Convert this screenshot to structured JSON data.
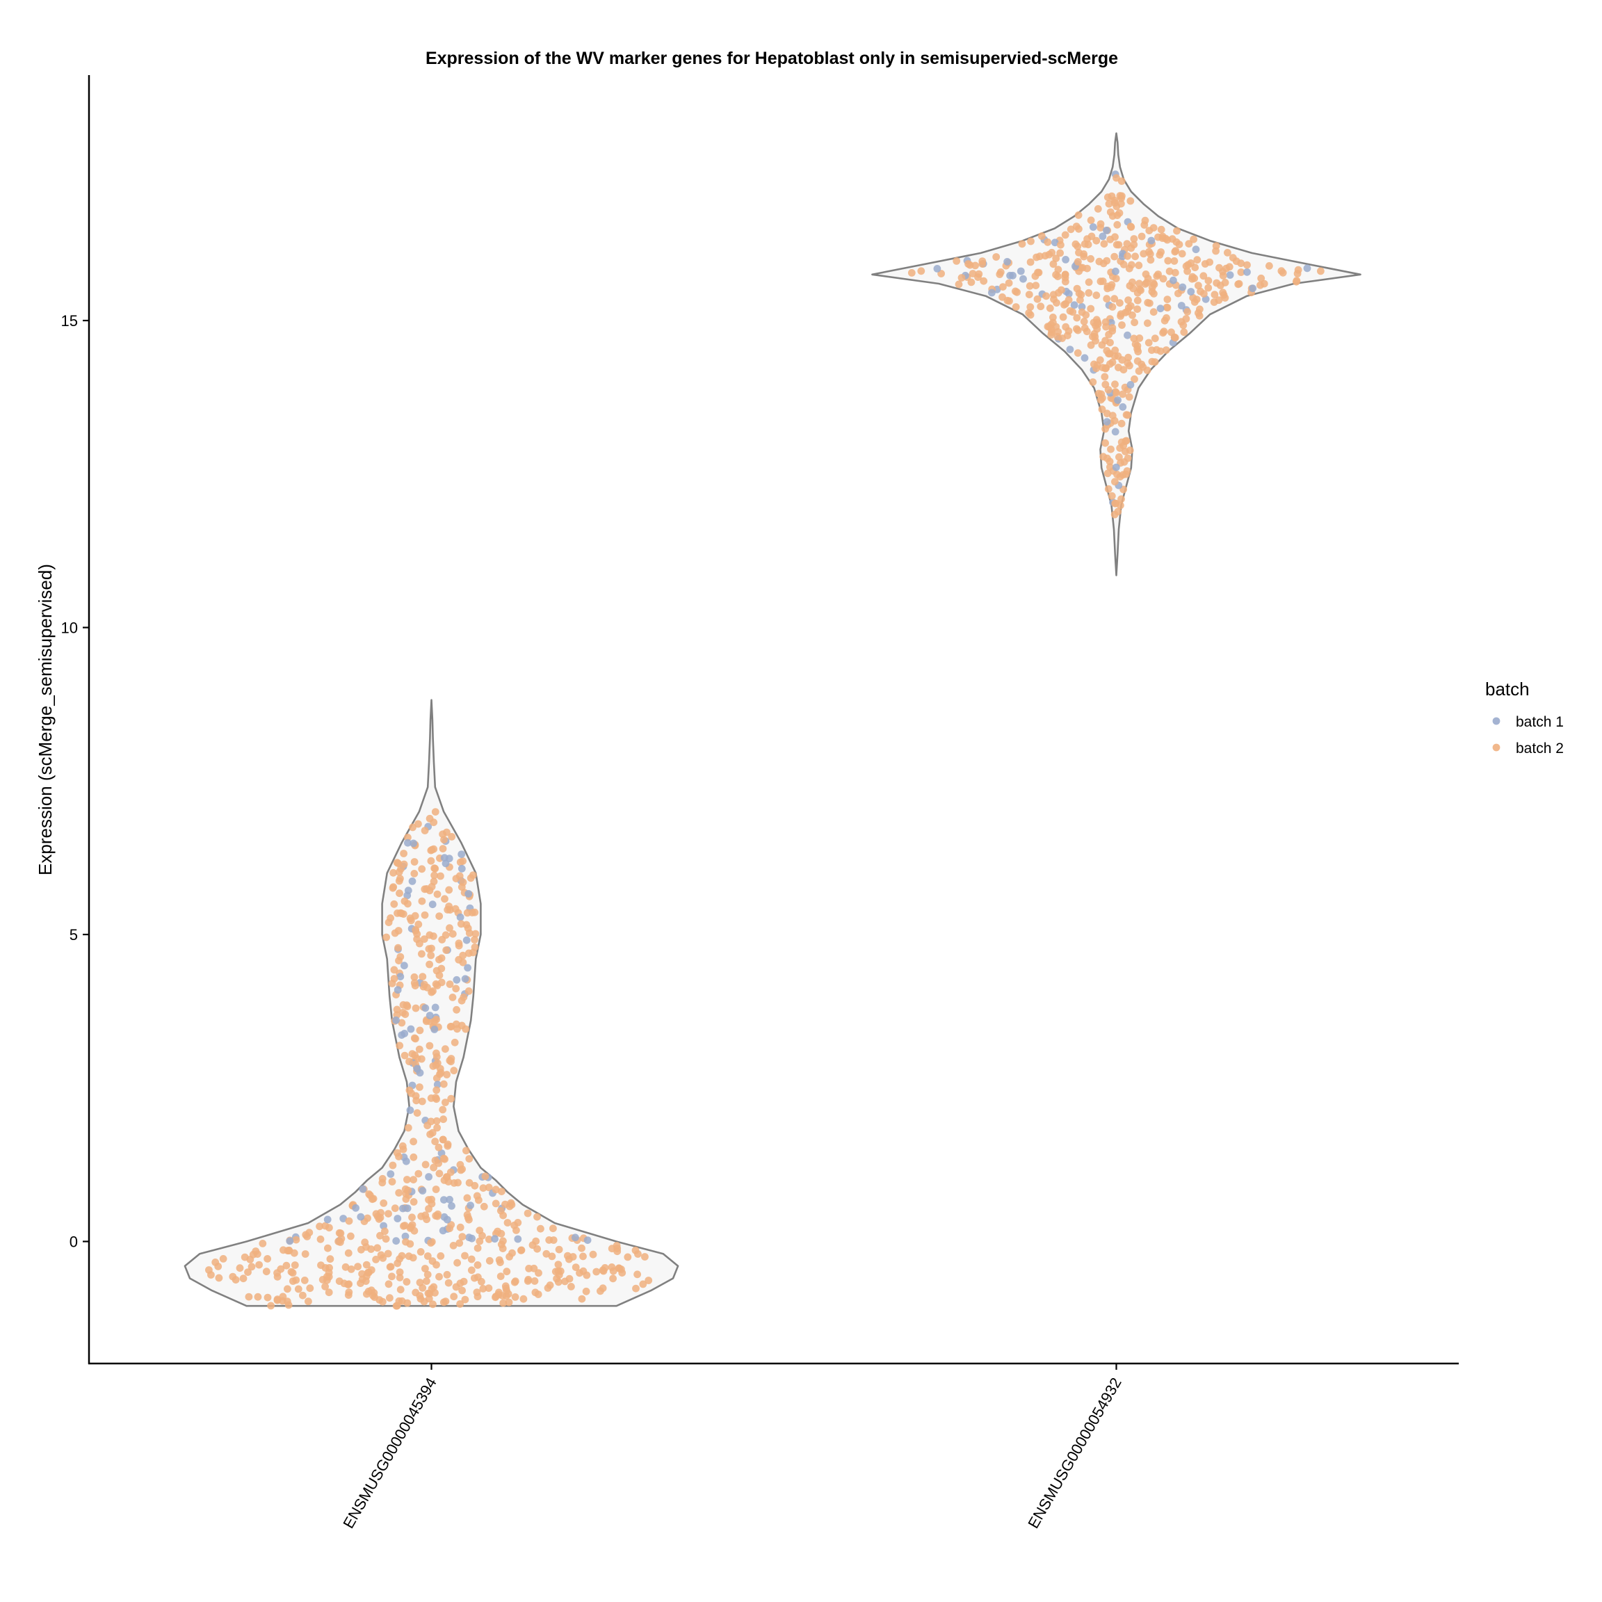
{
  "chart_data": {
    "type": "violin",
    "title": "Expression of the WV marker genes for Hepatoblast only in semisupervied-scMerge",
    "xlabel": "",
    "ylabel": "Expression (scMerge_semisupervised)",
    "ylim": [
      -2,
      19
    ],
    "yticks": [
      0,
      5,
      10,
      15
    ],
    "categories": [
      "ENSMUSG00000045394",
      "ENSMUSG00000054932"
    ],
    "legend": {
      "title": "batch",
      "position": "right",
      "entries": [
        {
          "label": "batch 1",
          "color": "#9aabcd"
        },
        {
          "label": "batch 2",
          "color": "#f0b07f"
        }
      ]
    },
    "violins": [
      {
        "category": "ENSMUSG00000045394",
        "y": [
          -1.05,
          -0.8,
          -0.6,
          -0.4,
          -0.2,
          0.0,
          0.3,
          0.6,
          0.8,
          1.0,
          1.2,
          1.5,
          1.8,
          2.2,
          2.6,
          3.0,
          3.6,
          4.0,
          4.6,
          5.0,
          5.5,
          6.0,
          6.5,
          7.0,
          7.4,
          7.8,
          8.2,
          8.5,
          8.82
        ],
        "width": [
          0.75,
          0.89,
          0.98,
          1.0,
          0.94,
          0.75,
          0.5,
          0.37,
          0.31,
          0.26,
          0.2,
          0.15,
          0.11,
          0.09,
          0.1,
          0.13,
          0.16,
          0.17,
          0.18,
          0.2,
          0.2,
          0.18,
          0.12,
          0.05,
          0.015,
          0.01,
          0.006,
          0.004,
          0.0
        ],
        "points": {
          "batch 1": {
            "n": 90,
            "range": [
              0.0,
              6.8
            ]
          },
          "batch 2": {
            "n": 640,
            "range": [
              -1.05,
              7.2
            ]
          }
        }
      },
      {
        "category": "ENSMUSG00000054932",
        "y": [
          10.85,
          11.2,
          11.6,
          12.0,
          12.3,
          12.6,
          12.9,
          13.2,
          13.5,
          13.9,
          14.2,
          14.5,
          14.8,
          15.1,
          15.4,
          15.6,
          15.75,
          15.9,
          16.1,
          16.3,
          16.5,
          16.7,
          16.9,
          17.1,
          17.3,
          17.5,
          17.7,
          17.9,
          18.05
        ],
        "width": [
          0.0,
          0.005,
          0.01,
          0.02,
          0.04,
          0.06,
          0.065,
          0.05,
          0.06,
          0.09,
          0.14,
          0.21,
          0.3,
          0.38,
          0.53,
          0.72,
          0.99,
          0.8,
          0.55,
          0.38,
          0.25,
          0.17,
          0.11,
          0.06,
          0.03,
          0.015,
          0.008,
          0.005,
          0.0
        ],
        "points": {
          "batch 1": {
            "n": 60,
            "range": [
              10.9,
              18.0
            ]
          },
          "batch 2": {
            "n": 460,
            "range": [
              11.8,
              17.6
            ]
          }
        }
      }
    ]
  }
}
